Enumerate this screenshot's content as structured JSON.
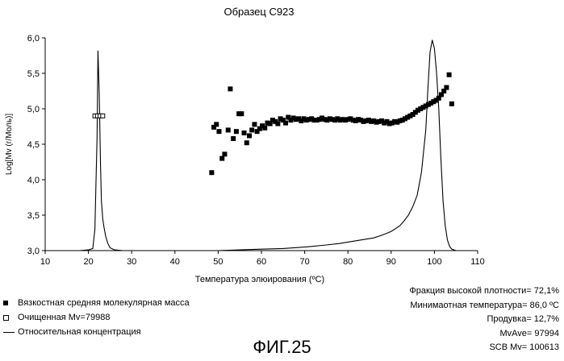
{
  "chart_data": {
    "type": "scatter",
    "title": "Образец C923",
    "xlabel": "Температура элюирования (ºC)",
    "ylabel": "Log[Mv (г/Моль)]",
    "xlim": [
      10,
      110
    ],
    "ylim": [
      3.0,
      6.0
    ],
    "x_ticks": [
      "10",
      "20",
      "30",
      "40",
      "50",
      "60",
      "70",
      "80",
      "90",
      "100",
      "110"
    ],
    "y_ticks": [
      "3,0",
      "3,5",
      "4,0",
      "4,5",
      "5,0",
      "5,5",
      "6,0"
    ],
    "series": [
      {
        "name": "Вязкостная средняя молекулярная масса",
        "marker": "filled-square",
        "x": [
          48.5,
          49,
          49.6,
          50.2,
          50.9,
          51.5,
          52.3,
          52.8,
          53.5,
          54.2,
          54.8,
          55.4,
          56,
          56.6,
          57.2,
          57.8,
          58.4,
          59,
          59.6,
          60.2,
          60.8,
          61.4,
          62,
          62.6,
          63.2,
          63.8,
          64.4,
          65,
          65.6,
          66.2,
          66.8,
          67.4,
          68,
          68.6,
          69.2,
          69.8,
          70.4,
          71,
          71.6,
          72.2,
          72.8,
          73.4,
          74,
          74.6,
          75.2,
          75.8,
          76.4,
          77,
          77.6,
          78.2,
          78.8,
          79.4,
          80,
          80.6,
          81.2,
          81.8,
          82.4,
          83,
          83.6,
          84.2,
          84.8,
          85.4,
          86,
          86.6,
          87.2,
          87.8,
          88.4,
          89,
          89.6,
          90.2,
          90.8,
          91.4,
          92,
          92.6,
          93.2,
          93.8,
          94.4,
          95,
          95.6,
          96.2,
          96.8,
          97.4,
          98,
          98.6,
          99.2,
          99.8,
          100.4,
          101,
          101.6,
          102.2,
          102.8,
          103.4,
          104
        ],
        "y": [
          4.1,
          4.74,
          4.78,
          4.68,
          4.3,
          4.36,
          4.7,
          5.28,
          4.58,
          4.68,
          4.93,
          4.93,
          4.66,
          4.52,
          4.62,
          4.7,
          4.78,
          4.68,
          4.72,
          4.76,
          4.73,
          4.8,
          4.79,
          4.84,
          4.82,
          4.79,
          4.86,
          4.84,
          4.8,
          4.88,
          4.84,
          4.87,
          4.85,
          4.86,
          4.83,
          4.86,
          4.84,
          4.85,
          4.86,
          4.84,
          4.84,
          4.85,
          4.87,
          4.85,
          4.84,
          4.86,
          4.85,
          4.84,
          4.86,
          4.84,
          4.85,
          4.84,
          4.85,
          4.86,
          4.84,
          4.83,
          4.85,
          4.84,
          4.82,
          4.83,
          4.84,
          4.82,
          4.83,
          4.81,
          4.82,
          4.83,
          4.8,
          4.82,
          4.79,
          4.8,
          4.82,
          4.81,
          4.83,
          4.84,
          4.86,
          4.88,
          4.9,
          4.92,
          4.95,
          4.98,
          5.0,
          5.02,
          5.04,
          5.06,
          5.08,
          5.1,
          5.12,
          5.15,
          5.2,
          5.25,
          5.3,
          5.48,
          5.07
        ]
      },
      {
        "name": "Очищенная Mv=79988",
        "marker": "open-square",
        "x": [
          21.5,
          22.1,
          22.7,
          23.3
        ],
        "y": [
          4.9,
          4.9,
          4.9,
          4.9
        ]
      },
      {
        "name": "Относительная концентрация",
        "type": "line",
        "x": [
          10,
          18,
          20,
          21,
          21.5,
          22,
          22.2,
          22.5,
          22.8,
          23,
          23.3,
          23.6,
          24,
          24.5,
          25,
          26,
          28,
          40,
          50,
          55,
          60,
          65,
          70,
          75,
          78,
          80,
          82,
          84,
          86,
          88,
          90,
          92,
          93,
          94,
          95,
          96,
          97,
          98,
          98.5,
          99,
          99.5,
          100,
          100.5,
          101,
          101.5,
          102,
          102.5,
          103,
          103.5,
          104,
          105,
          110
        ],
        "y": [
          3.0,
          3.0,
          3.01,
          3.03,
          3.3,
          4.6,
          5.82,
          5.2,
          4.2,
          3.7,
          3.45,
          3.33,
          3.2,
          3.1,
          3.04,
          3.01,
          3.0,
          3.0,
          3.0,
          3.01,
          3.02,
          3.03,
          3.05,
          3.08,
          3.1,
          3.12,
          3.14,
          3.16,
          3.18,
          3.22,
          3.27,
          3.35,
          3.42,
          3.5,
          3.62,
          3.78,
          4.1,
          4.7,
          5.3,
          5.8,
          5.97,
          5.85,
          5.5,
          5.0,
          4.3,
          3.7,
          3.35,
          3.15,
          3.06,
          3.02,
          3.0,
          3.0
        ]
      }
    ],
    "legend_position": "bottom-left",
    "grid": false
  },
  "stats": [
    "Фракция высокой плотности= 72,1%",
    "Минимаотная температура= 86,0 ºC",
    "Продувка= 12,7%",
    "MvAve= 97994",
    "SCB Mv= 100613"
  ],
  "figure_label": "ФИГ.25"
}
